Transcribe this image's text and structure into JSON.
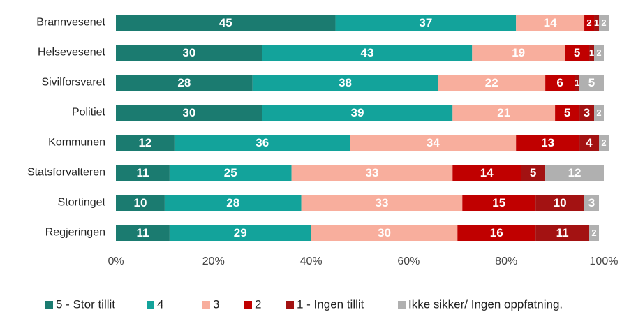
{
  "chart_data": {
    "type": "stacked-bar-horizontal",
    "categories": [
      "Brannvesenet",
      "Helsevesenet",
      "Sivilforsvaret",
      "Politiet",
      "Kommunen",
      "Statsforvalteren",
      "Stortinget",
      "Regjeringen"
    ],
    "series": [
      {
        "name": "5 - Stor tillit",
        "color": "#1b7b70",
        "values": [
          45,
          30,
          28,
          30,
          12,
          11,
          10,
          11
        ]
      },
      {
        "name": "4",
        "color": "#13a39b",
        "values": [
          37,
          43,
          38,
          39,
          36,
          25,
          28,
          29
        ]
      },
      {
        "name": "3",
        "color": "#f8ae9d",
        "values": [
          14,
          19,
          22,
          21,
          34,
          33,
          33,
          30
        ]
      },
      {
        "name": "2",
        "color": "#c00000",
        "values": [
          2,
          5,
          6,
          5,
          13,
          14,
          15,
          16
        ]
      },
      {
        "name": "1 - Ingen tillit",
        "color": "#a31212",
        "values": [
          1,
          1,
          1,
          3,
          4,
          5,
          10,
          11
        ]
      },
      {
        "name": "Ikke sikker/ Ingen oppfatning.",
        "color": "#b0b0b0",
        "values": [
          2,
          2,
          5,
          2,
          2,
          12,
          3,
          2
        ]
      }
    ],
    "xlim": [
      0,
      100
    ],
    "xticks": [
      {
        "value": 0,
        "label": "0%"
      },
      {
        "value": 20,
        "label": "20%"
      },
      {
        "value": 40,
        "label": "40%"
      },
      {
        "value": 60,
        "label": "60%"
      },
      {
        "value": 80,
        "label": "80%"
      },
      {
        "value": 100,
        "label": "100%"
      }
    ],
    "grid": false,
    "legend": "bottom"
  }
}
